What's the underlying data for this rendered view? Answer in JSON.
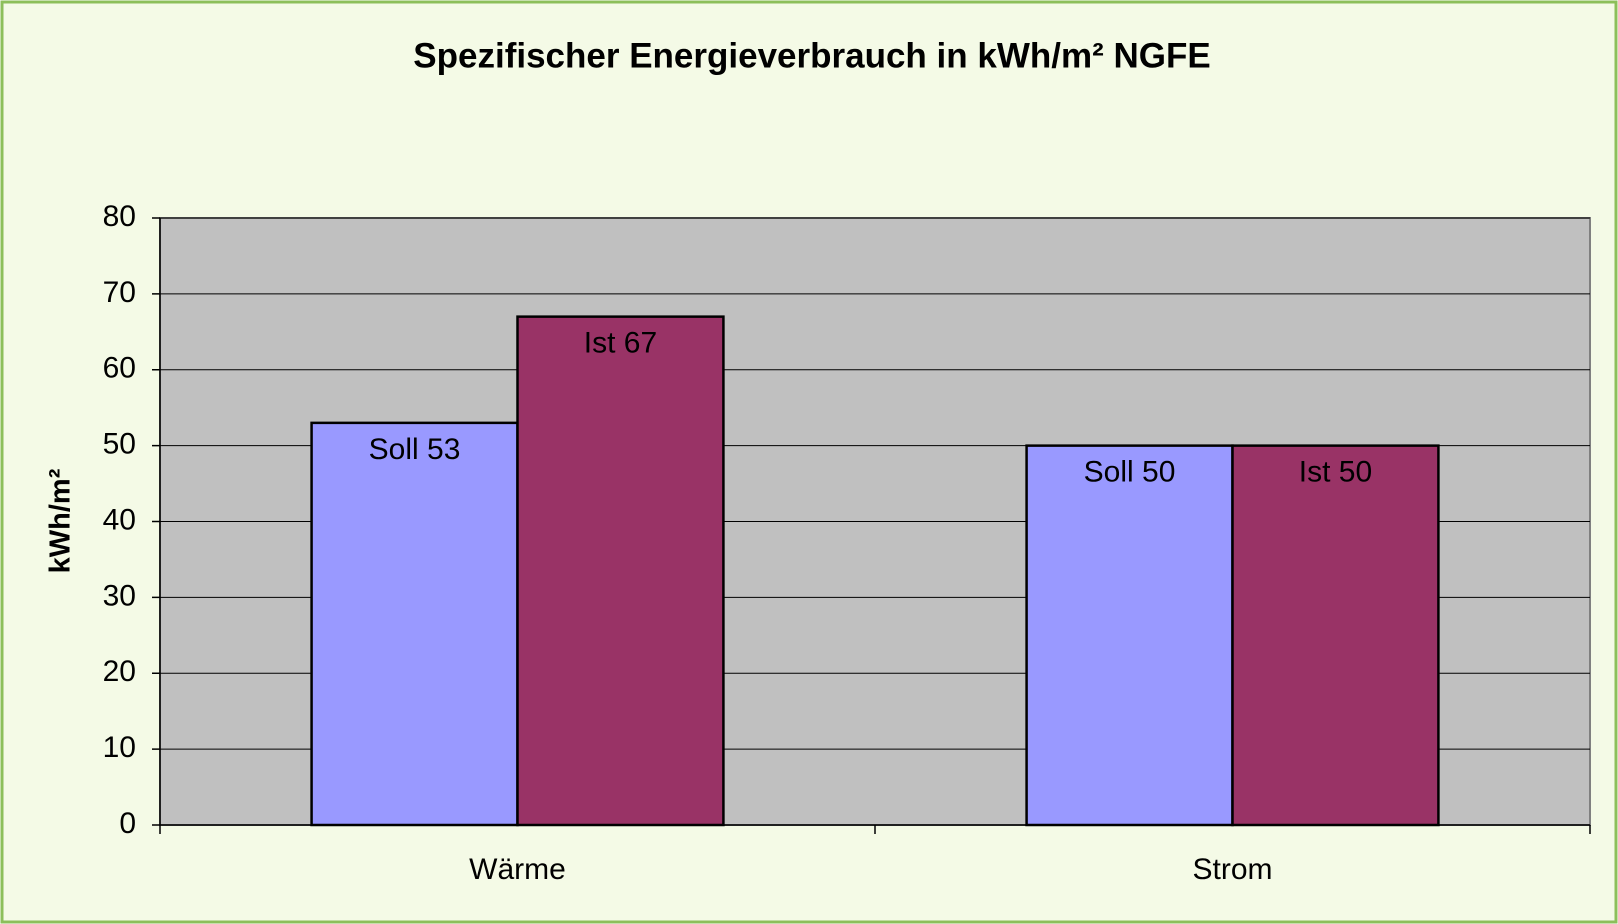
{
  "chart_data": {
    "type": "bar",
    "title": "Spezifischer Energieverbrauch in kWh/m² NGFE",
    "y_label": "kWh/m²",
    "categories": [
      "Wärme",
      "Strom"
    ],
    "series": [
      {
        "name": "Soll",
        "color": "#9999ff",
        "values": [
          53,
          50
        ],
        "value_labels": [
          "Soll 53",
          "Soll 50"
        ]
      },
      {
        "name": "Ist",
        "color": "#993366",
        "values": [
          67,
          50
        ],
        "value_labels": [
          "Ist 67",
          "Ist 50"
        ]
      }
    ],
    "ylim": [
      0,
      80
    ],
    "yticks": [
      0,
      10,
      20,
      30,
      40,
      50,
      60,
      70,
      80
    ],
    "grid": true
  }
}
